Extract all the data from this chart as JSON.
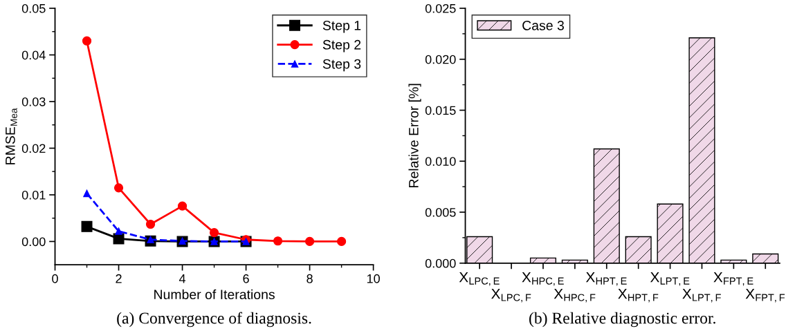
{
  "chart_data": [
    {
      "type": "line",
      "xlabel": "Number of Iterations",
      "ylabel": "RMSE$_{Mea}$",
      "annotations": [
        "(a) Convergence of diagnosis."
      ],
      "xlim": [
        0,
        10
      ],
      "xticks": [
        0,
        2,
        4,
        6,
        8,
        10
      ],
      "ylim": [
        -0.005,
        0.05
      ],
      "yticks": [
        {
          "value": 0,
          "label": "0.00"
        },
        0.01,
        0.02,
        0.03,
        0.04,
        0.05
      ],
      "legend": "top right",
      "grid": false,
      "series": [
        {
          "name": "Step 1",
          "color": "#000000",
          "marker": "square",
          "line_style": "solid",
          "x": [
            1,
            2,
            3,
            4,
            5,
            6
          ],
          "values": [
            0.0032,
            0.0006,
            0.0001,
            0.0,
            0.0,
            0.0
          ]
        },
        {
          "name": "Step 2",
          "color": "#ff0000",
          "marker": "circle",
          "line_style": "solid",
          "x": [
            1,
            2,
            3,
            4,
            5,
            6,
            7,
            8,
            9
          ],
          "values": [
            0.043,
            0.0115,
            0.0037,
            0.0076,
            0.0019,
            0.0004,
            0.0001,
            0.0,
            0.0
          ]
        },
        {
          "name": "Step 3",
          "color": "#0000ff",
          "marker": "triangle",
          "line_style": "dashed",
          "x": [
            1,
            2,
            3,
            4,
            5,
            6
          ],
          "values": [
            0.0103,
            0.0022,
            0.0004,
            0.0001,
            0.0,
            0.0
          ]
        }
      ]
    },
    {
      "type": "bar",
      "ylabel": "Relative Error [%]",
      "annotations": [
        "(b) Relative diagnostic error."
      ],
      "categories": [
        "X$_{LPC,E}$",
        "X$_{LPC,F}$",
        "X$_{HPC,E}$",
        "X$_{HPC,F}$",
        "X$_{HPT,E}$",
        "X$_{HPT,F}$",
        "X$_{LPT,E}$",
        "X$_{LPT,F}$",
        "X$_{FPT,E}$",
        "X$_{FPT,F}$"
      ],
      "ylim": [
        0,
        0.025
      ],
      "yticks": [
        {
          "value": 0,
          "label": "0.000"
        },
        {
          "value": 0.005,
          "label": "0.005"
        },
        {
          "value": 0.01,
          "label": "0.010"
        },
        {
          "value": 0.015,
          "label": "0.015"
        },
        {
          "value": 0.02,
          "label": "0.020"
        },
        {
          "value": 0.025,
          "label": "0.025"
        }
      ],
      "legend": "top left",
      "grid": false,
      "series": [
        {
          "name": "Case 3",
          "color": "#f0d8e8",
          "values": [
            0.0026,
            0.0,
            0.0005,
            0.0003,
            0.0112,
            0.0026,
            0.0058,
            0.0221,
            0.0003,
            0.0009
          ]
        }
      ]
    }
  ]
}
